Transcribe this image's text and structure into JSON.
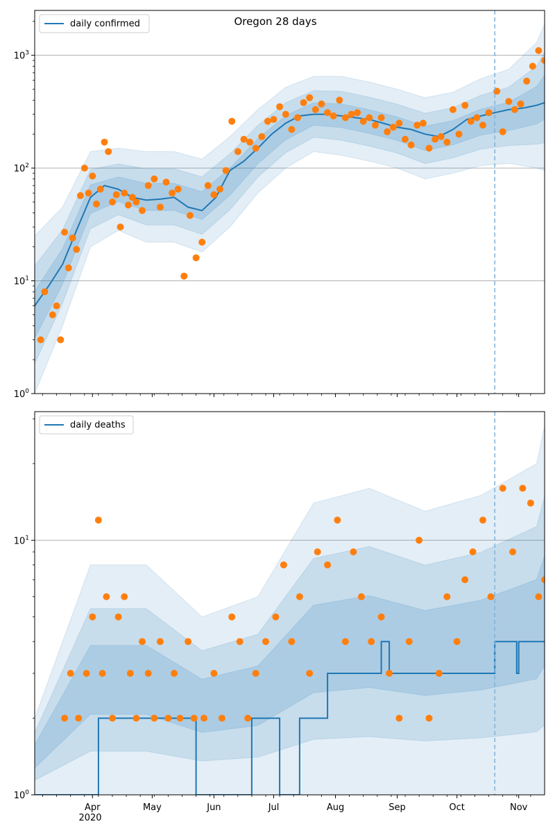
{
  "figure": {
    "x_tick_labels": [
      "Apr",
      "May",
      "Jun",
      "Jul",
      "Aug",
      "Sep",
      "Oct",
      "Nov"
    ],
    "x_year_label": "2020"
  },
  "chart_data": [
    {
      "type": "line",
      "title": "Oregon 28 days",
      "xlabel": "",
      "ylabel": "",
      "y_scale": "log",
      "ylim": [
        1,
        2500
      ],
      "xlim": [
        "2020-03-03",
        "2020-11-14"
      ],
      "y_tick_labels": [
        "10^0",
        "10^1",
        "10^2",
        "10^3"
      ],
      "grid": "horizontal at major y ticks",
      "legend_position": "top-left",
      "legend": [
        "daily confirmed"
      ],
      "vertical_marker": {
        "x": "2020-10-20",
        "style": "dashed",
        "color": "#7fb2d9"
      },
      "colors": {
        "line": "#1f77b4",
        "points": "#ff7f0e",
        "bands": "#1f77b4"
      },
      "series": [
        {
          "name": "daily confirmed",
          "kind": "line",
          "x": [
            "2020-03-03",
            "2020-03-10",
            "2020-03-17",
            "2020-03-24",
            "2020-03-31",
            "2020-04-07",
            "2020-04-14",
            "2020-04-21",
            "2020-04-28",
            "2020-05-05",
            "2020-05-12",
            "2020-05-19",
            "2020-05-26",
            "2020-06-02",
            "2020-06-09",
            "2020-06-16",
            "2020-06-23",
            "2020-06-30",
            "2020-07-07",
            "2020-07-14",
            "2020-07-21",
            "2020-07-28",
            "2020-08-04",
            "2020-08-11",
            "2020-08-18",
            "2020-08-25",
            "2020-09-01",
            "2020-09-08",
            "2020-09-15",
            "2020-09-22",
            "2020-09-29",
            "2020-10-06",
            "2020-10-13",
            "2020-10-20",
            "2020-10-27",
            "2020-11-03",
            "2020-11-10",
            "2020-11-14"
          ],
          "y": [
            6,
            9,
            14,
            28,
            55,
            70,
            65,
            55,
            52,
            53,
            55,
            45,
            42,
            55,
            95,
            115,
            150,
            200,
            250,
            290,
            300,
            300,
            290,
            280,
            270,
            250,
            230,
            220,
            200,
            190,
            220,
            270,
            290,
            310,
            330,
            340,
            360,
            380
          ]
        },
        {
          "name": "",
          "kind": "band",
          "x": [
            "2020-03-03",
            "2020-03-17",
            "2020-03-31",
            "2020-04-14",
            "2020-04-28",
            "2020-05-12",
            "2020-05-26",
            "2020-06-09",
            "2020-06-23",
            "2020-07-07",
            "2020-07-21",
            "2020-08-04",
            "2020-08-18",
            "2020-09-01",
            "2020-09-15",
            "2020-09-29",
            "2020-10-13",
            "2020-10-27",
            "2020-11-10",
            "2020-11-14"
          ],
          "lower": [
            1,
            4,
            20,
            28,
            22,
            22,
            18,
            30,
            60,
            100,
            140,
            130,
            115,
            100,
            80,
            90,
            105,
            110,
            100,
            95
          ],
          "upper": [
            25,
            45,
            140,
            150,
            140,
            140,
            120,
            190,
            330,
            520,
            650,
            650,
            580,
            500,
            420,
            470,
            620,
            750,
            1300,
            1900
          ]
        },
        {
          "name": "",
          "kind": "points",
          "x": [
            "2020-03-06",
            "2020-03-08",
            "2020-03-12",
            "2020-03-14",
            "2020-03-16",
            "2020-03-18",
            "2020-03-20",
            "2020-03-22",
            "2020-03-24",
            "2020-03-26",
            "2020-03-28",
            "2020-03-30",
            "2020-04-01",
            "2020-04-03",
            "2020-04-05",
            "2020-04-07",
            "2020-04-09",
            "2020-04-11",
            "2020-04-13",
            "2020-04-15",
            "2020-04-17",
            "2020-04-19",
            "2020-04-21",
            "2020-04-23",
            "2020-04-26",
            "2020-04-29",
            "2020-05-02",
            "2020-05-05",
            "2020-05-08",
            "2020-05-11",
            "2020-05-14",
            "2020-05-17",
            "2020-05-20",
            "2020-05-23",
            "2020-05-26",
            "2020-05-29",
            "2020-06-01",
            "2020-06-04",
            "2020-06-07",
            "2020-06-10",
            "2020-06-13",
            "2020-06-16",
            "2020-06-19",
            "2020-06-22",
            "2020-06-25",
            "2020-06-28",
            "2020-07-01",
            "2020-07-04",
            "2020-07-07",
            "2020-07-10",
            "2020-07-13",
            "2020-07-16",
            "2020-07-19",
            "2020-07-22",
            "2020-07-25",
            "2020-07-28",
            "2020-07-31",
            "2020-08-03",
            "2020-08-06",
            "2020-08-09",
            "2020-08-12",
            "2020-08-15",
            "2020-08-18",
            "2020-08-21",
            "2020-08-24",
            "2020-08-27",
            "2020-08-30",
            "2020-09-02",
            "2020-09-05",
            "2020-09-08",
            "2020-09-11",
            "2020-09-14",
            "2020-09-17",
            "2020-09-20",
            "2020-09-23",
            "2020-09-26",
            "2020-09-29",
            "2020-10-02",
            "2020-10-05",
            "2020-10-08",
            "2020-10-11",
            "2020-10-14",
            "2020-10-17",
            "2020-10-21",
            "2020-10-24",
            "2020-10-27",
            "2020-10-30",
            "2020-11-02",
            "2020-11-05",
            "2020-11-08",
            "2020-11-11",
            "2020-11-14"
          ],
          "y": [
            3,
            8,
            5,
            6,
            3,
            27,
            13,
            24,
            19,
            57,
            100,
            60,
            85,
            48,
            65,
            170,
            140,
            50,
            58,
            30,
            60,
            47,
            55,
            50,
            42,
            70,
            80,
            45,
            75,
            60,
            65,
            11,
            38,
            16,
            22,
            70,
            58,
            65,
            95,
            260,
            140,
            180,
            170,
            150,
            190,
            260,
            270,
            350,
            300,
            220,
            280,
            380,
            420,
            330,
            370,
            310,
            290,
            400,
            280,
            300,
            310,
            260,
            280,
            240,
            280,
            210,
            230,
            250,
            180,
            160,
            240,
            250,
            150,
            180,
            190,
            170,
            330,
            200,
            360,
            260,
            280,
            240,
            310,
            480,
            210,
            390,
            330,
            370,
            590,
            800,
            1100,
            900
          ]
        }
      ]
    },
    {
      "type": "line",
      "title": "",
      "xlabel": "",
      "ylabel": "",
      "y_scale": "log",
      "ylim": [
        1,
        32
      ],
      "xlim": [
        "2020-03-03",
        "2020-11-14"
      ],
      "y_tick_labels": [
        "10^1"
      ],
      "grid": "horizontal at major y ticks",
      "legend_position": "top-left",
      "legend": [
        "daily deaths"
      ],
      "vertical_marker": {
        "x": "2020-10-20",
        "style": "dashed",
        "color": "#7fb2d9"
      },
      "colors": {
        "line": "#1f77b4",
        "points": "#ff7f0e",
        "bands": "#1f77b4"
      },
      "series": [
        {
          "name": "daily deaths",
          "kind": "step",
          "x": [
            "2020-03-03",
            "2020-04-04",
            "2020-05-23",
            "2020-06-20",
            "2020-07-04",
            "2020-07-14",
            "2020-07-28",
            "2020-08-24",
            "2020-08-28",
            "2020-09-26",
            "2020-10-03",
            "2020-10-19",
            "2020-10-20",
            "2020-10-31",
            "2020-11-01",
            "2020-11-14"
          ],
          "y": [
            1,
            2,
            1,
            2,
            1,
            2,
            3,
            4,
            3,
            3,
            3,
            3,
            4,
            3,
            4,
            4
          ]
        },
        {
          "name": "",
          "kind": "band",
          "x": [
            "2020-03-03",
            "2020-03-31",
            "2020-04-28",
            "2020-05-26",
            "2020-06-23",
            "2020-07-21",
            "2020-08-18",
            "2020-09-15",
            "2020-10-13",
            "2020-11-10",
            "2020-11-14"
          ],
          "lower": [
            1,
            1,
            1,
            1,
            1,
            1,
            1,
            1,
            1,
            1,
            1
          ],
          "upper": [
            2,
            8,
            8,
            5,
            6,
            14,
            16,
            13,
            15,
            20,
            28
          ]
        },
        {
          "name": "",
          "kind": "points",
          "x": [
            "2020-03-18",
            "2020-03-21",
            "2020-03-25",
            "2020-03-29",
            "2020-04-01",
            "2020-04-04",
            "2020-04-06",
            "2020-04-08",
            "2020-04-11",
            "2020-04-14",
            "2020-04-17",
            "2020-04-20",
            "2020-04-23",
            "2020-04-26",
            "2020-04-29",
            "2020-05-02",
            "2020-05-05",
            "2020-05-09",
            "2020-05-12",
            "2020-05-15",
            "2020-05-19",
            "2020-05-22",
            "2020-05-27",
            "2020-06-01",
            "2020-06-05",
            "2020-06-10",
            "2020-06-14",
            "2020-06-18",
            "2020-06-22",
            "2020-06-27",
            "2020-07-02",
            "2020-07-06",
            "2020-07-10",
            "2020-07-14",
            "2020-07-19",
            "2020-07-23",
            "2020-07-28",
            "2020-08-02",
            "2020-08-06",
            "2020-08-10",
            "2020-08-14",
            "2020-08-19",
            "2020-08-24",
            "2020-08-28",
            "2020-09-02",
            "2020-09-07",
            "2020-09-12",
            "2020-09-17",
            "2020-09-22",
            "2020-09-26",
            "2020-10-01",
            "2020-10-05",
            "2020-10-09",
            "2020-10-14",
            "2020-10-18",
            "2020-10-24",
            "2020-10-29",
            "2020-11-03",
            "2020-11-07",
            "2020-11-11",
            "2020-11-14"
          ],
          "y": [
            2,
            3,
            2,
            3,
            5,
            12,
            3,
            6,
            2,
            5,
            6,
            3,
            2,
            4,
            3,
            2,
            4,
            2,
            3,
            2,
            4,
            2,
            2,
            3,
            2,
            5,
            4,
            2,
            3,
            4,
            5,
            8,
            4,
            6,
            3,
            9,
            8,
            12,
            4,
            9,
            6,
            4,
            5,
            3,
            2,
            4,
            10,
            2,
            3,
            6,
            4,
            7,
            9,
            12,
            6,
            16,
            9,
            16,
            14,
            6,
            7
          ]
        }
      ]
    }
  ]
}
